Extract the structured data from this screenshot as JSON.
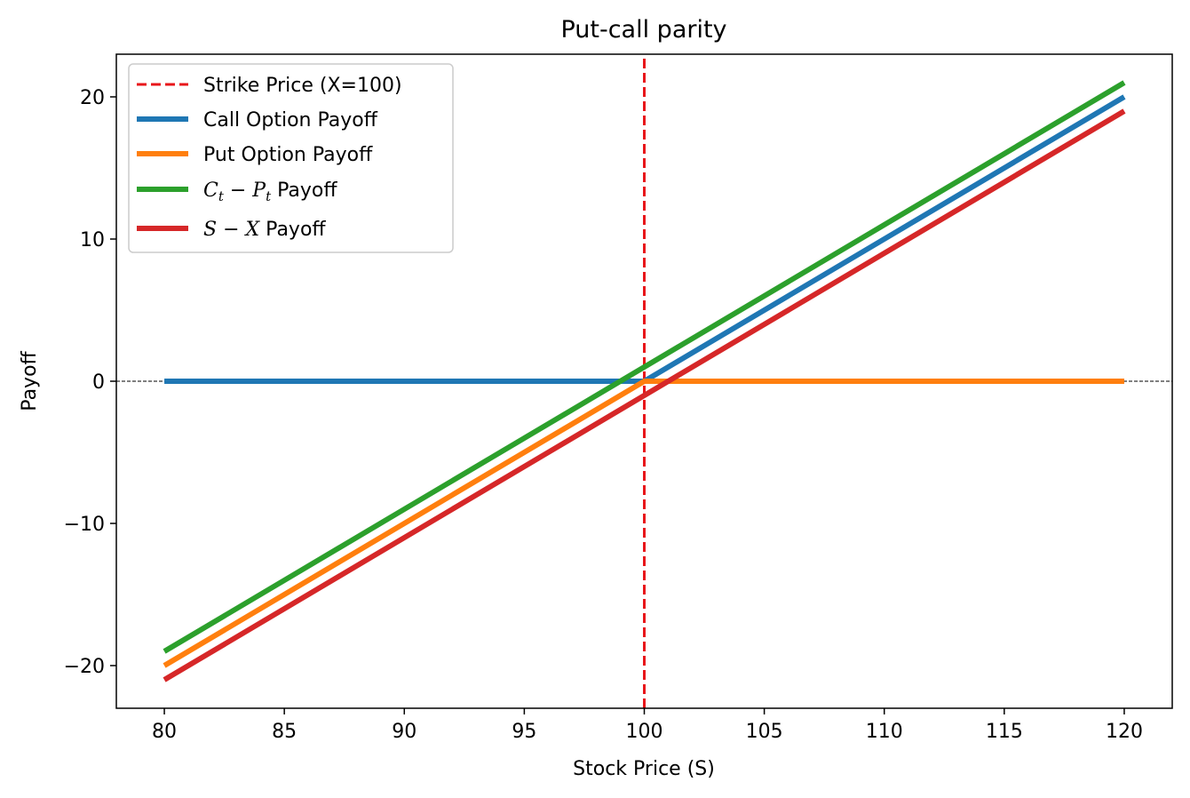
{
  "chart_data": {
    "type": "line",
    "title": "Put-call parity",
    "xlabel": "Stock Price (S)",
    "ylabel": "Payoff",
    "xlim": [
      78,
      122
    ],
    "ylim": [
      -23,
      23
    ],
    "xticks": [
      80,
      85,
      90,
      95,
      100,
      105,
      110,
      115,
      120
    ],
    "yticks": [
      -20,
      -10,
      0,
      10,
      20
    ],
    "xtick_labels": [
      "80",
      "85",
      "90",
      "95",
      "100",
      "105",
      "110",
      "115",
      "120"
    ],
    "ytick_labels": [
      "−20",
      "−10",
      "0",
      "10",
      "20"
    ],
    "grid": false,
    "legend_placement": "upper-left",
    "strike_price": 100,
    "zero_line_y": 0,
    "series": [
      {
        "key": "strike",
        "name": "Strike Price (X=100)",
        "color": "#e8161a",
        "style": "dashed",
        "x": [
          100,
          100
        ],
        "y": [
          -23,
          23
        ]
      },
      {
        "key": "call",
        "name": "Call Option Payoff",
        "color": "#1f77b4",
        "style": "solid",
        "x": [
          80,
          100,
          120
        ],
        "y": [
          0,
          0,
          20
        ]
      },
      {
        "key": "put",
        "name": "Put Option Payoff",
        "color": "#ff7f0e",
        "style": "solid",
        "x": [
          80,
          100,
          120
        ],
        "y": [
          -20,
          0,
          0
        ]
      },
      {
        "key": "ct_pt",
        "name": "C_t − P_t Payoff",
        "color": "#2ca02c",
        "style": "solid",
        "x": [
          80,
          120
        ],
        "y": [
          -19,
          21
        ]
      },
      {
        "key": "s_x",
        "name": "S − X Payoff",
        "color": "#d62728",
        "style": "solid",
        "x": [
          80,
          120
        ],
        "y": [
          -21,
          19
        ]
      }
    ]
  },
  "legend": {
    "strike": "Strike Price (X=100)",
    "call": "Call Option Payoff",
    "put": "Put Option Payoff",
    "ct_pt_c": "C",
    "ct_pt_t1": "t",
    "ct_pt_minus": " − ",
    "ct_pt_p": "P",
    "ct_pt_t2": "t",
    "ct_pt_suffix": " Payoff",
    "s_x_s": "S",
    "s_x_minus": " − ",
    "s_x_x": "X",
    "s_x_suffix": " Payoff"
  }
}
